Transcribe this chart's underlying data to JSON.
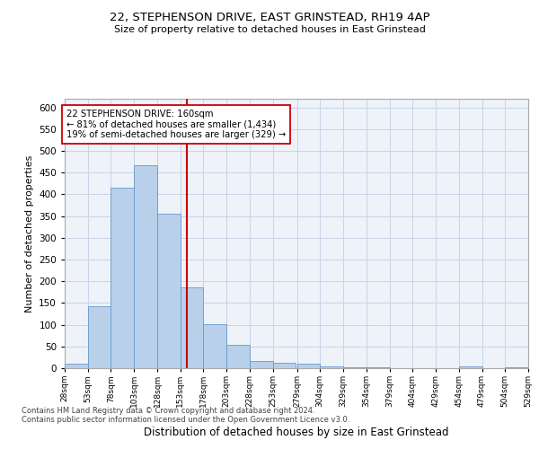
{
  "title": "22, STEPHENSON DRIVE, EAST GRINSTEAD, RH19 4AP",
  "subtitle": "Size of property relative to detached houses in East Grinstead",
  "xlabel": "Distribution of detached houses by size in East Grinstead",
  "ylabel": "Number of detached properties",
  "bar_color": "#b8d0ea",
  "bar_edge_color": "#6699cc",
  "background_color": "#eef2f9",
  "grid_color": "#c8d4e8",
  "vline_x": 160,
  "vline_color": "#cc0000",
  "annotation_title": "22 STEPHENSON DRIVE: 160sqm",
  "annotation_line1": "← 81% of detached houses are smaller (1,434)",
  "annotation_line2": "19% of semi-detached houses are larger (329) →",
  "bin_edges": [
    28,
    53,
    78,
    103,
    128,
    153,
    178,
    203,
    228,
    253,
    279,
    304,
    329,
    354,
    379,
    404,
    429,
    454,
    479,
    504,
    529
  ],
  "bin_counts": [
    10,
    143,
    415,
    468,
    355,
    185,
    102,
    53,
    16,
    12,
    11,
    5,
    2,
    3,
    1,
    0,
    0,
    4,
    0,
    3
  ],
  "ylim": [
    0,
    620
  ],
  "yticks": [
    0,
    50,
    100,
    150,
    200,
    250,
    300,
    350,
    400,
    450,
    500,
    550,
    600
  ],
  "footnote1": "Contains HM Land Registry data © Crown copyright and database right 2024.",
  "footnote2": "Contains public sector information licensed under the Open Government Licence v3.0."
}
